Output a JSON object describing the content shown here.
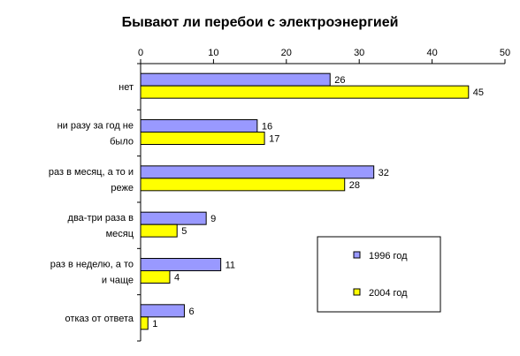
{
  "chart_data": {
    "type": "bar",
    "orientation": "horizontal",
    "title": "Бывают ли перебои с электроэнергией",
    "categories": [
      [
        "нет"
      ],
      [
        "ни разу за год не",
        "было"
      ],
      [
        "раз в месяц, а то и",
        "реже"
      ],
      [
        "два-три раза в",
        "месяц"
      ],
      [
        "раз в неделю, а то",
        "и чаще"
      ],
      [
        "отказ от ответа"
      ]
    ],
    "series": [
      {
        "name": "1996 год",
        "color": "#9999ff",
        "values": [
          26,
          16,
          32,
          9,
          11,
          6
        ]
      },
      {
        "name": "2004 год",
        "color": "#ffff00",
        "values": [
          45,
          17,
          28,
          5,
          4,
          1
        ]
      }
    ],
    "xlim": [
      0,
      50
    ],
    "xticks": [
      0,
      10,
      20,
      30,
      40,
      50
    ],
    "axis_position": "top",
    "legend_position": "bottom-right",
    "grid": false
  }
}
